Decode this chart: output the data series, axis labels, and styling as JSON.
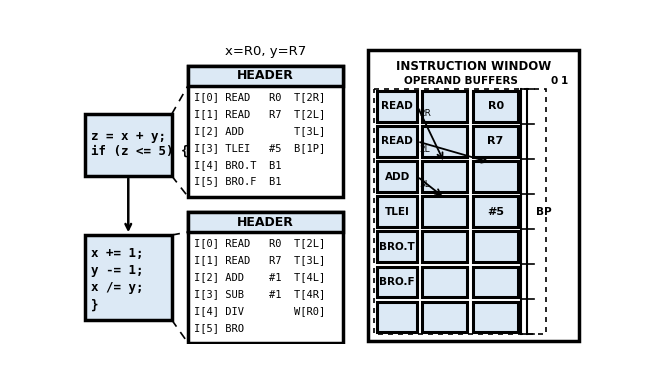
{
  "title_xy": "x=R0, y=R7",
  "iw_title": "INSTRUCTION WINDOW",
  "ob_title": "OPERAND BUFFERS",
  "bg_color": "#dce9f5",
  "header1_lines": [
    "I[0] READ   R0  T[2R]",
    "I[1] READ   R7  T[2L]",
    "I[2] ADD        T[3L]",
    "I[3] TLEI   #5  B[1P]",
    "I[4] BRO.T  B1",
    "I[5] BRO.F  B1"
  ],
  "header2_lines": [
    "I[0] READ   R0  T[2L]",
    "I[1] READ   R7  T[3L]",
    "I[2] ADD    #1  T[4L]",
    "I[3] SUB    #1  T[4R]",
    "I[4] DIV        W[R0]",
    "I[5] BRO"
  ],
  "code_box1_lines": [
    "z = x + y;",
    "if (z <= 5) {"
  ],
  "code_box2_lines": [
    "x += 1;",
    "y -= 1;",
    "x /= y;",
    "}"
  ],
  "iw_rows": [
    "READ",
    "READ",
    "ADD",
    "TLEI",
    "BRO.T",
    "BRO.F",
    ""
  ],
  "iw_col2_labels": [
    "R0",
    "R7",
    "",
    "#5",
    "",
    "",
    ""
  ],
  "bp_label": "BP",
  "col_headers": [
    "0",
    "1"
  ]
}
